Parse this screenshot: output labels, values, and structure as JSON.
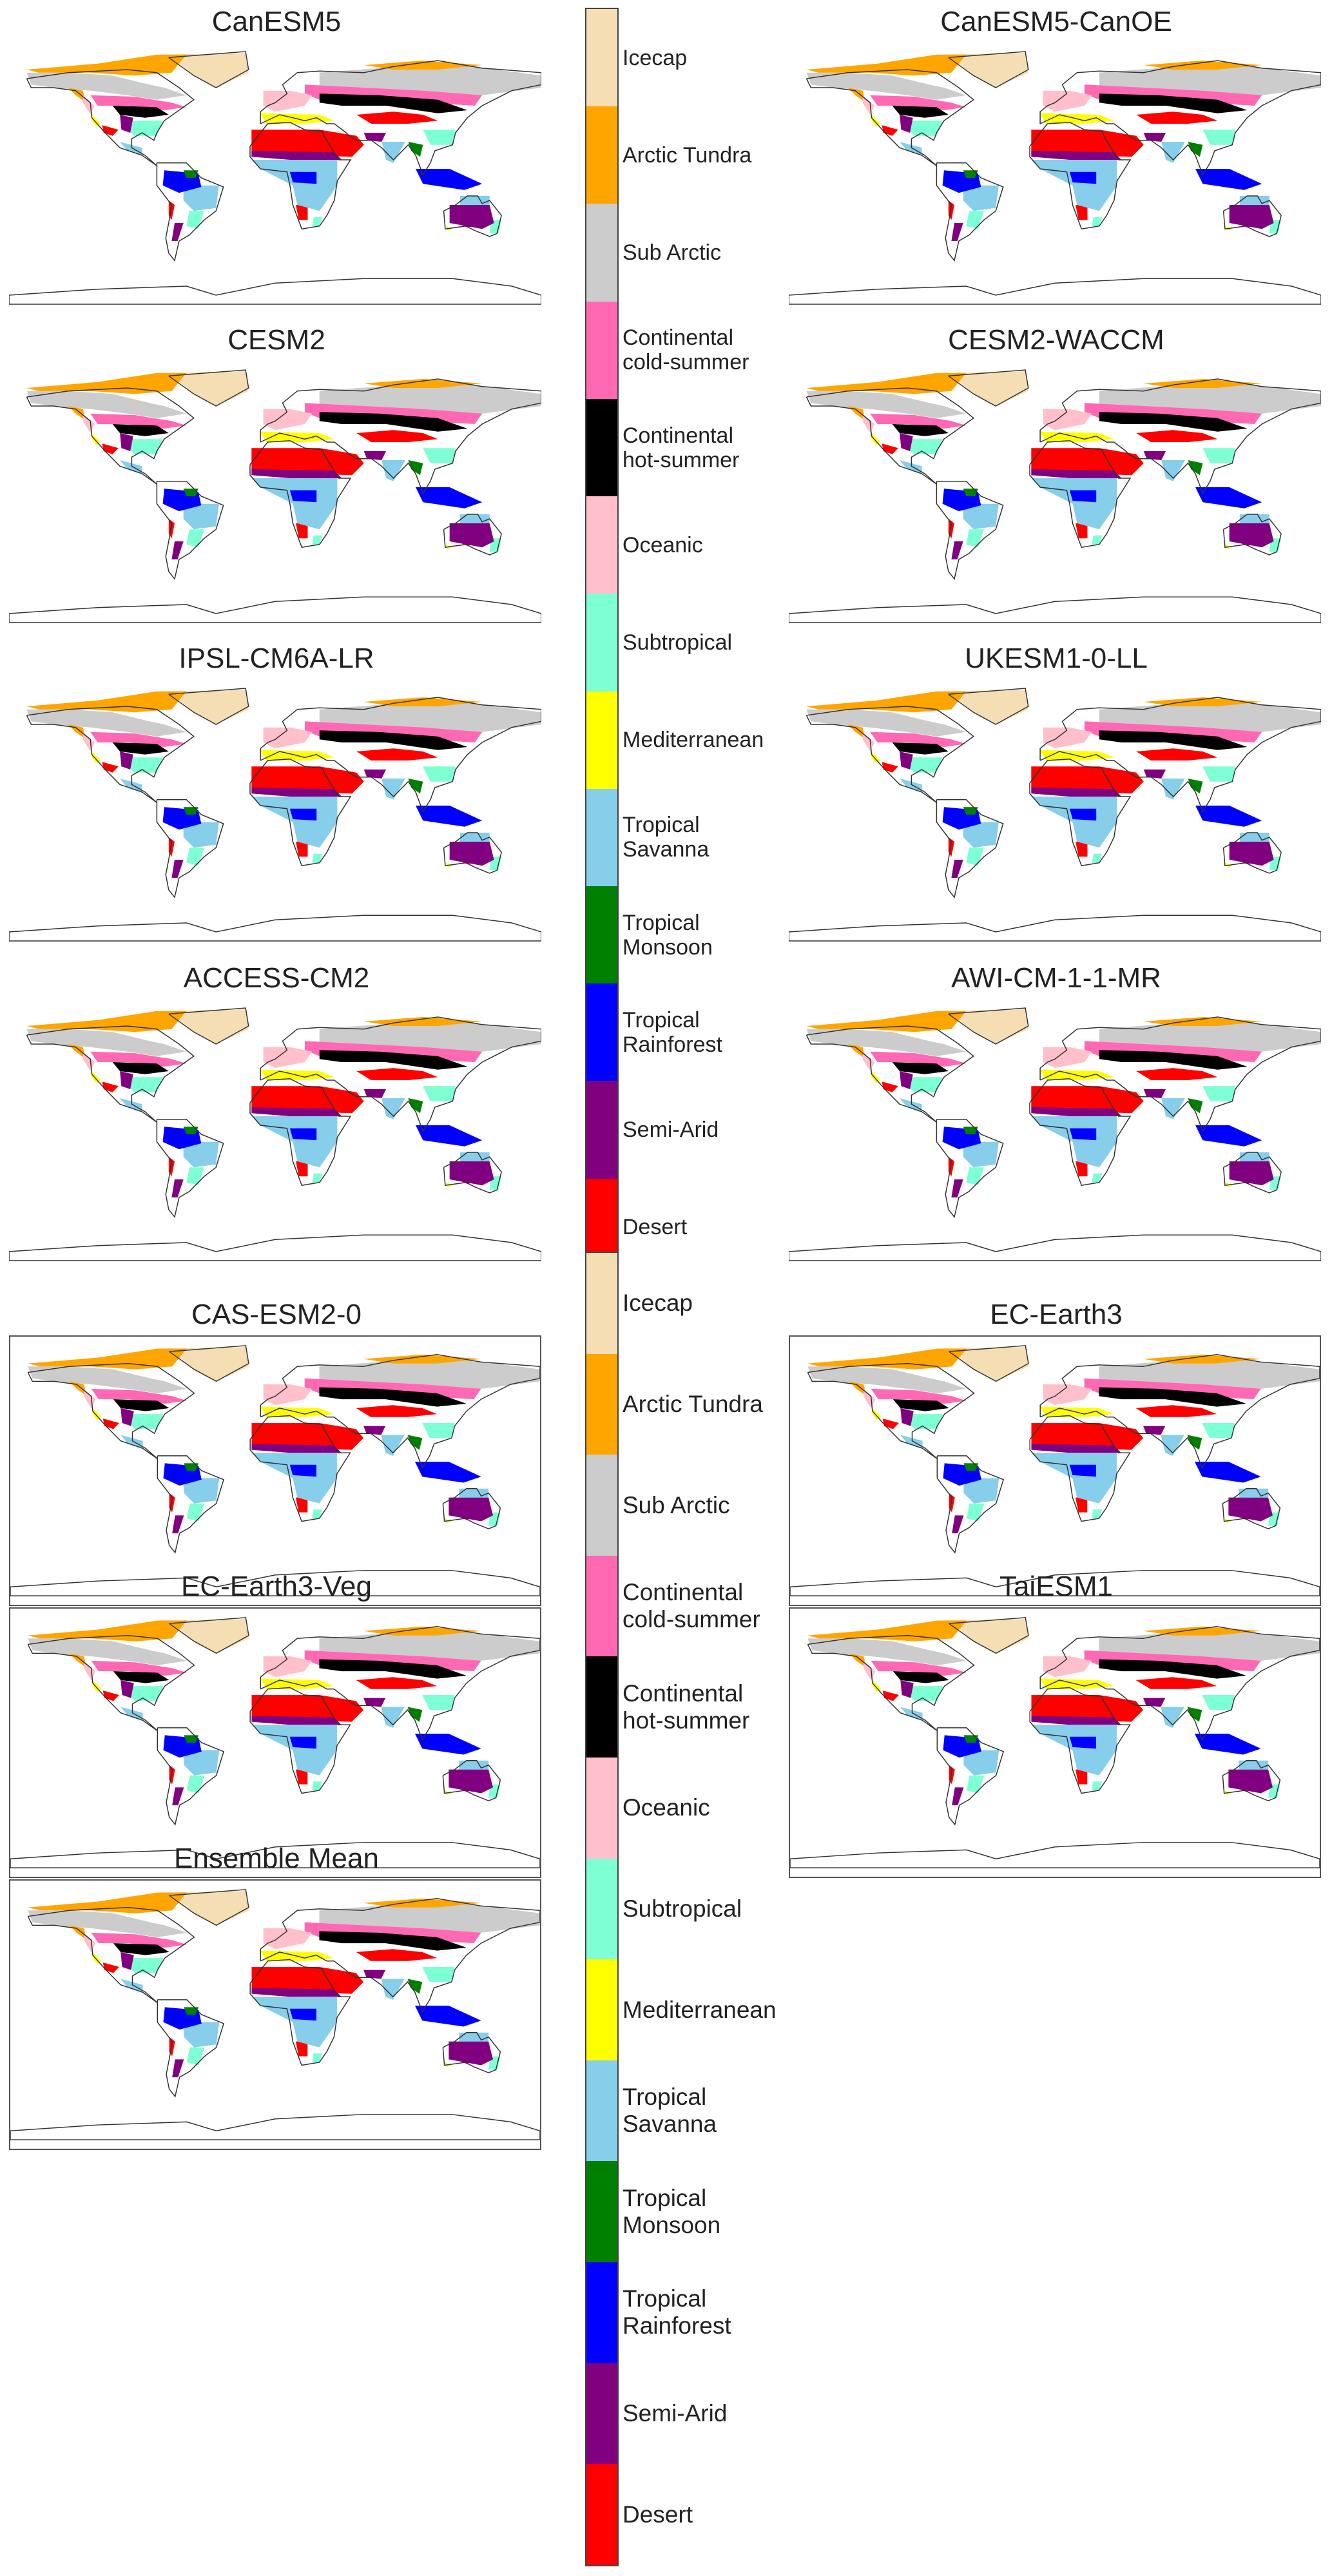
{
  "top_panels": [
    {
      "title": "CanESM5",
      "boxed": false
    },
    {
      "title": "CanESM5-CanOE",
      "boxed": false
    },
    {
      "title": "CESM2",
      "boxed": false
    },
    {
      "title": "CESM2-WACCM",
      "boxed": false
    },
    {
      "title": "IPSL-CM6A-LR",
      "boxed": false
    },
    {
      "title": "UKESM1-0-LL",
      "boxed": false
    },
    {
      "title": "ACCESS-CM2",
      "boxed": false
    },
    {
      "title": "AWI-CM-1-1-MR",
      "boxed": false
    }
  ],
  "bottom_panels": [
    {
      "title": "CAS-ESM2-0",
      "boxed": true
    },
    {
      "title": "EC-Earth3",
      "boxed": true
    },
    {
      "title": "EC-Earth3-Veg",
      "boxed": true
    },
    {
      "title": "TaiESM1",
      "boxed": true
    },
    {
      "title": "Ensemble Mean",
      "boxed": true
    }
  ],
  "legend_classes": [
    {
      "label": "Icecap",
      "color": "#f5deb3"
    },
    {
      "label": "Arctic Tundra",
      "color": "#ffa500"
    },
    {
      "label": "Sub Arctic",
      "color": "#cccccc"
    },
    {
      "label": "Continental\ncold-summer",
      "color": "#ff69b4"
    },
    {
      "label": "Continental\nhot-summer",
      "color": "#000000"
    },
    {
      "label": "Oceanic",
      "color": "#ffc0cb"
    },
    {
      "label": "Subtropical",
      "color": "#7fffd4"
    },
    {
      "label": "Mediterranean",
      "color": "#ffff00"
    },
    {
      "label": "Tropical\nSavanna",
      "color": "#87ceeb"
    },
    {
      "label": "Tropical\nMonsoon",
      "color": "#008000"
    },
    {
      "label": "Tropical\nRainforest",
      "color": "#0000ff"
    },
    {
      "label": "Semi-Arid",
      "color": "#800080"
    },
    {
      "label": "Desert",
      "color": "#ff0000"
    }
  ]
}
